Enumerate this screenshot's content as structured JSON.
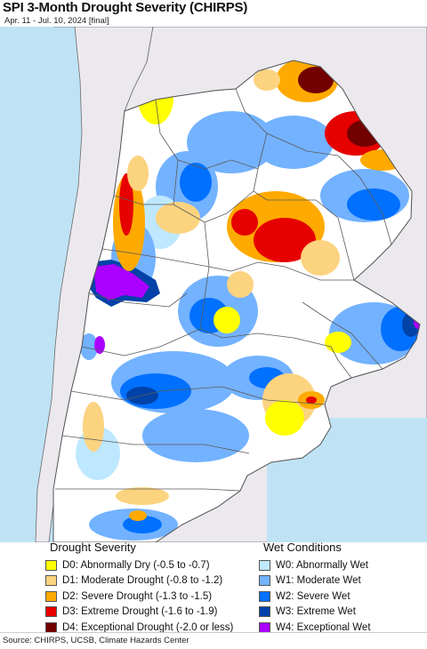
{
  "header": {
    "title": "SPI 3-Month Drought Severity (CHIRPS)",
    "subtitle": "Apr. 11 - Jul. 10, 2024 [final]"
  },
  "legend": {
    "drought": {
      "heading": "Drought Severity",
      "items": [
        {
          "label": "D0: Abnormally Dry (-0.5 to -0.7)",
          "color": "#ffff00"
        },
        {
          "label": "D1: Moderate Drought (-0.8 to -1.2)",
          "color": "#fcd37f"
        },
        {
          "label": "D2: Severe Drought (-1.3 to -1.5)",
          "color": "#ffaa00"
        },
        {
          "label": "D3: Extreme Drought (-1.6 to -1.9)",
          "color": "#e60000"
        },
        {
          "label": "D4: Exceptional Drought (-2.0 or less)",
          "color": "#730000"
        }
      ]
    },
    "wet": {
      "heading": "Wet Conditions",
      "items": [
        {
          "label": "W0: Abnormally Wet",
          "color": "#bee8ff"
        },
        {
          "label": "W1: Moderate Wet",
          "color": "#73b2ff"
        },
        {
          "label": "W2: Severe Wet",
          "color": "#0070ff"
        },
        {
          "label": "W3: Extreme Wet",
          "color": "#0042a8"
        },
        {
          "label": "W4: Exceptional Wet",
          "color": "#aa00ff"
        }
      ]
    }
  },
  "footer": {
    "source": "Source: CHIRPS, UCSB, Climate Hazards Center"
  },
  "map": {
    "ocean_color": "#bfe3f5",
    "outside_land_color": "#ece9ee",
    "border_color": "#5a5a5a"
  }
}
